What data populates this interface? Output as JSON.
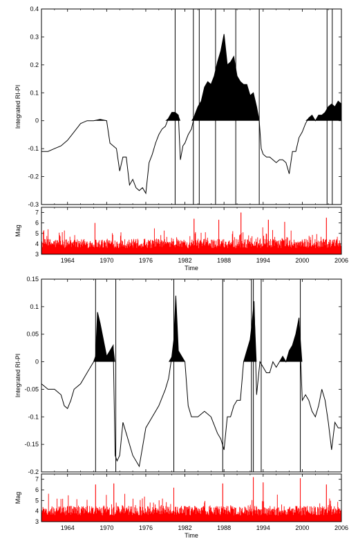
{
  "chart_data": [
    {
      "type": "area",
      "panel": "top",
      "ylabel": "Integrated RI-PI",
      "xlabel": "",
      "xlim": [
        1960,
        2006
      ],
      "ylim": [
        -0.3,
        0.4
      ],
      "yticks": [
        "-0.3",
        "-0.2",
        "-0.1",
        "0",
        "0.1",
        "0.2",
        "0.3",
        "0.4"
      ],
      "xticks": [
        "1964",
        "1970",
        "1976",
        "1982",
        "1988",
        "1994",
        "2000",
        "2006"
      ],
      "series": [
        {
          "color": "#000000",
          "x": [
            1960.0,
            1961.0,
            1962.0,
            1963.0,
            1964.0,
            1965.0,
            1966.0,
            1967.0,
            1968.0,
            1969.0,
            1970.0,
            1970.5,
            1971.0,
            1971.5,
            1972.0,
            1972.5,
            1973.0,
            1973.5,
            1974.0,
            1974.5,
            1975.0,
            1975.5,
            1976.0,
            1976.5,
            1977.0,
            1977.5,
            1978.0,
            1978.5,
            1979.0,
            1979.5,
            1980.0,
            1980.5,
            1981.0,
            1981.3,
            1981.7,
            1982.0,
            1982.5,
            1983.0,
            1983.5,
            1984.0,
            1984.5,
            1985.0,
            1985.5,
            1986.0,
            1986.5,
            1987.0,
            1987.5,
            1988.0,
            1988.5,
            1989.0,
            1989.5,
            1990.0,
            1990.5,
            1991.0,
            1991.5,
            1992.0,
            1992.5,
            1993.0,
            1993.4,
            1993.7,
            1994.0,
            1994.5,
            1995.0,
            1995.5,
            1996.0,
            1996.5,
            1997.0,
            1997.5,
            1998.0,
            1998.5,
            1999.0,
            1999.5,
            2000.0,
            2000.5,
            2001.0,
            2001.5,
            2002.0,
            2002.5,
            2003.0,
            2003.5,
            2004.0,
            2004.5,
            2005.0,
            2005.5,
            2006.0
          ],
          "y": [
            -0.11,
            -0.11,
            -0.1,
            -0.09,
            -0.07,
            -0.04,
            -0.01,
            0.0,
            0.0,
            0.005,
            0.0,
            -0.08,
            -0.09,
            -0.1,
            -0.18,
            -0.13,
            -0.13,
            -0.23,
            -0.21,
            -0.24,
            -0.25,
            -0.24,
            -0.26,
            -0.15,
            -0.12,
            -0.08,
            -0.05,
            -0.03,
            -0.02,
            0.01,
            0.03,
            0.03,
            0.02,
            -0.14,
            -0.09,
            -0.08,
            -0.05,
            -0.03,
            0.02,
            0.05,
            0.07,
            0.12,
            0.14,
            0.13,
            0.16,
            0.21,
            0.25,
            0.31,
            0.2,
            0.21,
            0.23,
            0.16,
            0.14,
            0.13,
            0.13,
            0.09,
            0.1,
            0.05,
            0.0,
            -0.1,
            -0.12,
            -0.13,
            -0.13,
            -0.14,
            -0.15,
            -0.14,
            -0.14,
            -0.15,
            -0.19,
            -0.11,
            -0.11,
            -0.06,
            -0.04,
            -0.01,
            0.01,
            0.02,
            0.0,
            0.02,
            0.02,
            0.03,
            0.05,
            0.06,
            0.05,
            0.07,
            0.06
          ]
        }
      ],
      "vertical_lines": [
        1980.5,
        1983.3,
        1984.2,
        1986.7,
        1989.8,
        1993.4,
        2003.8,
        2004.6
      ]
    },
    {
      "type": "bar",
      "panel": "top-magnitude",
      "ylabel": "Mag",
      "xlabel": "Time",
      "xlim": [
        1960,
        2006
      ],
      "ylim": [
        3,
        7.5
      ],
      "yticks": [
        "3",
        "4",
        "5",
        "6",
        "7"
      ],
      "xticks": [
        "1964",
        "1970",
        "1976",
        "1982",
        "1988",
        "1994",
        "2000",
        "2006"
      ],
      "color": "#ff0000",
      "baseline_magnitude": 3,
      "typical_magnitude": 3.9,
      "max_magnitude": 7.0,
      "largest_events": [
        {
          "x": 1990.6,
          "mag": 7.0
        },
        {
          "x": 2003.7,
          "mag": 6.5
        },
        {
          "x": 1983.4,
          "mag": 6.4
        },
        {
          "x": 1987.2,
          "mag": 6.3
        },
        {
          "x": 1994.8,
          "mag": 6.3
        },
        {
          "x": 1997.3,
          "mag": 6.1
        },
        {
          "x": 1968.2,
          "mag": 6.0
        }
      ]
    },
    {
      "type": "area",
      "panel": "bottom",
      "ylabel": "Integrated RI-PI",
      "xlabel": "",
      "xlim": [
        1960,
        2006
      ],
      "ylim": [
        -0.2,
        0.15
      ],
      "yticks": [
        "-0.2",
        "-0.15",
        "-0.1",
        "-0.05",
        "0",
        "0.05",
        "0.1",
        "0.15"
      ],
      "xticks": [
        "1964",
        "1970",
        "1976",
        "1982",
        "1988",
        "1994",
        "2000",
        "2006"
      ],
      "series": [
        {
          "color": "#000000",
          "x": [
            1960.0,
            1961.0,
            1962.0,
            1963.0,
            1963.5,
            1964.0,
            1964.5,
            1965.0,
            1966.0,
            1967.0,
            1968.0,
            1968.3,
            1968.6,
            1969.0,
            1969.5,
            1970.0,
            1970.5,
            1971.0,
            1971.3,
            1971.6,
            1972.0,
            1972.5,
            1973.0,
            1974.0,
            1975.0,
            1976.0,
            1977.0,
            1978.0,
            1979.0,
            1979.5,
            1980.0,
            1980.3,
            1980.6,
            1981.0,
            1981.5,
            1982.0,
            1982.5,
            1983.0,
            1984.0,
            1985.0,
            1986.0,
            1987.0,
            1987.5,
            1988.0,
            1988.5,
            1989.0,
            1989.5,
            1990.0,
            1990.5,
            1991.0,
            1991.5,
            1992.0,
            1992.3,
            1992.6,
            1993.0,
            1993.5,
            1994.0,
            1994.5,
            1995.0,
            1995.5,
            1996.0,
            1996.5,
            1997.0,
            1997.5,
            1998.0,
            1998.5,
            1999.0,
            1999.5,
            2000.0,
            2000.5,
            2001.0,
            2001.5,
            2002.0,
            2002.5,
            2003.0,
            2003.5,
            2004.0,
            2004.5,
            2005.0,
            2005.5,
            2006.0
          ],
          "y": [
            -0.04,
            -0.05,
            -0.05,
            -0.06,
            -0.08,
            -0.085,
            -0.07,
            -0.05,
            -0.04,
            -0.02,
            0.0,
            0.01,
            0.09,
            0.07,
            0.04,
            0.01,
            0.02,
            0.03,
            -0.17,
            -0.18,
            -0.17,
            -0.11,
            -0.13,
            -0.17,
            -0.19,
            -0.12,
            -0.1,
            -0.08,
            -0.05,
            -0.03,
            0.01,
            0.04,
            0.12,
            0.02,
            0.01,
            0.0,
            -0.08,
            -0.1,
            -0.1,
            -0.09,
            -0.1,
            -0.13,
            -0.14,
            -0.16,
            -0.1,
            -0.1,
            -0.08,
            -0.07,
            -0.07,
            0.0,
            0.02,
            0.04,
            0.07,
            0.11,
            -0.06,
            0.0,
            -0.01,
            -0.02,
            -0.02,
            0.0,
            -0.01,
            0.0,
            0.01,
            0.0,
            0.02,
            0.03,
            0.05,
            0.08,
            -0.07,
            -0.06,
            -0.07,
            -0.09,
            -0.1,
            -0.08,
            -0.05,
            -0.07,
            -0.11,
            -0.16,
            -0.11,
            -0.12,
            -0.12
          ]
        }
      ],
      "vertical_lines": [
        1968.3,
        1971.4,
        1980.3,
        1987.8,
        1992.2,
        1992.5,
        1993.7,
        1999.7
      ]
    },
    {
      "type": "bar",
      "panel": "bottom-magnitude",
      "ylabel": "Mag",
      "xlabel": "Time",
      "xlim": [
        1960,
        2006
      ],
      "ylim": [
        3,
        7.5
      ],
      "yticks": [
        "3",
        "4",
        "5",
        "6",
        "7"
      ],
      "xticks": [
        "1964",
        "1970",
        "1976",
        "1982",
        "1988",
        "1994",
        "2000",
        "2006"
      ],
      "color": "#ff0000",
      "baseline_magnitude": 3,
      "typical_magnitude": 3.9,
      "max_magnitude": 7.2,
      "largest_events": [
        {
          "x": 1992.5,
          "mag": 7.2
        },
        {
          "x": 1999.7,
          "mag": 7.1
        },
        {
          "x": 1987.8,
          "mag": 6.6
        },
        {
          "x": 1968.3,
          "mag": 6.5
        },
        {
          "x": 1971.1,
          "mag": 6.6
        },
        {
          "x": 1994.0,
          "mag": 6.7
        },
        {
          "x": 1980.3,
          "mag": 6.2
        },
        {
          "x": 2003.7,
          "mag": 6.5
        }
      ]
    }
  ]
}
